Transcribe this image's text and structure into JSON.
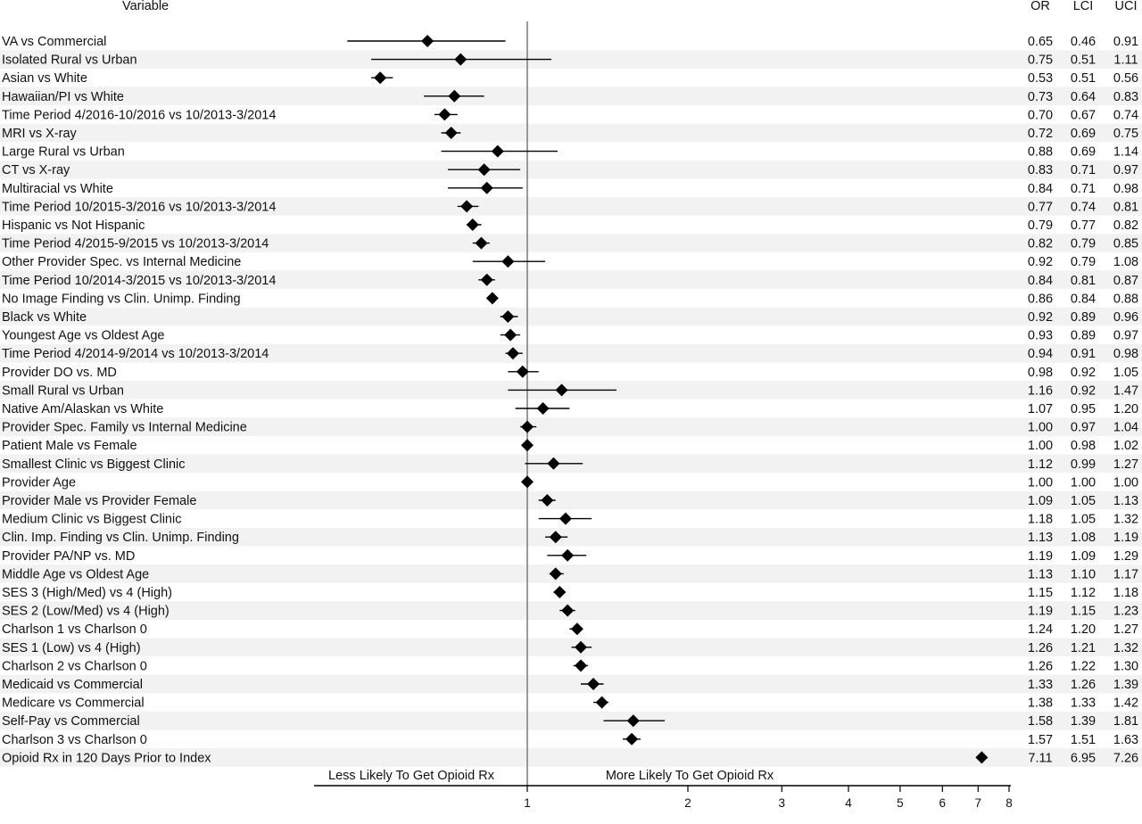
{
  "chart_data": {
    "type": "scatter",
    "subtype": "forest-plot",
    "xscale": "log",
    "xlim": [
      0.37,
      8
    ],
    "reference_line": 1,
    "xticks": [
      1,
      2,
      3,
      4,
      5,
      6,
      7,
      8
    ],
    "columns": {
      "variable": "Variable",
      "or": "OR",
      "lci": "LCI",
      "uci": "UCI"
    },
    "direction_labels": {
      "left": "Less Likely To Get Opioid Rx",
      "right": "More Likely To Get Opioid Rx"
    },
    "rows": [
      {
        "label": "VA vs Commercial",
        "or": 0.65,
        "lci": 0.46,
        "uci": 0.91
      },
      {
        "label": "Isolated Rural vs Urban",
        "or": 0.75,
        "lci": 0.51,
        "uci": 1.11
      },
      {
        "label": "Asian vs White",
        "or": 0.53,
        "lci": 0.51,
        "uci": 0.56
      },
      {
        "label": "Hawaiian/PI vs White",
        "or": 0.73,
        "lci": 0.64,
        "uci": 0.83
      },
      {
        "label": "Time Period 4/2016-10/2016 vs 10/2013-3/2014",
        "or": 0.7,
        "lci": 0.67,
        "uci": 0.74
      },
      {
        "label": "MRI vs X-ray",
        "or": 0.72,
        "lci": 0.69,
        "uci": 0.75
      },
      {
        "label": "Large Rural vs Urban",
        "or": 0.88,
        "lci": 0.69,
        "uci": 1.14
      },
      {
        "label": "CT vs X-ray",
        "or": 0.83,
        "lci": 0.71,
        "uci": 0.97
      },
      {
        "label": "Multiracial vs White",
        "or": 0.84,
        "lci": 0.71,
        "uci": 0.98
      },
      {
        "label": "Time Period 10/2015-3/2016 vs 10/2013-3/2014",
        "or": 0.77,
        "lci": 0.74,
        "uci": 0.81
      },
      {
        "label": "Hispanic vs Not Hispanic",
        "or": 0.79,
        "lci": 0.77,
        "uci": 0.82
      },
      {
        "label": "Time Period 4/2015-9/2015 vs 10/2013-3/2014",
        "or": 0.82,
        "lci": 0.79,
        "uci": 0.85
      },
      {
        "label": "Other Provider Spec. vs Internal Medicine",
        "or": 0.92,
        "lci": 0.79,
        "uci": 1.08
      },
      {
        "label": "Time Period 10/2014-3/2015 vs 10/2013-3/2014",
        "or": 0.84,
        "lci": 0.81,
        "uci": 0.87
      },
      {
        "label": "No Image Finding vs Clin. Unimp. Finding",
        "or": 0.86,
        "lci": 0.84,
        "uci": 0.88
      },
      {
        "label": "Black vs White",
        "or": 0.92,
        "lci": 0.89,
        "uci": 0.96
      },
      {
        "label": "Youngest Age vs Oldest Age",
        "or": 0.93,
        "lci": 0.89,
        "uci": 0.97
      },
      {
        "label": "Time Period 4/2014-9/2014 vs 10/2013-3/2014",
        "or": 0.94,
        "lci": 0.91,
        "uci": 0.98
      },
      {
        "label": "Provider DO vs. MD",
        "or": 0.98,
        "lci": 0.92,
        "uci": 1.05
      },
      {
        "label": "Small Rural vs Urban",
        "or": 1.16,
        "lci": 0.92,
        "uci": 1.47
      },
      {
        "label": "Native Am/Alaskan vs White",
        "or": 1.07,
        "lci": 0.95,
        "uci": 1.2
      },
      {
        "label": "Provider Spec. Family vs Internal Medicine",
        "or": 1.0,
        "lci": 0.97,
        "uci": 1.04
      },
      {
        "label": "Patient Male vs Female",
        "or": 1.0,
        "lci": 0.98,
        "uci": 1.02
      },
      {
        "label": "Smallest Clinic vs Biggest Clinic",
        "or": 1.12,
        "lci": 0.99,
        "uci": 1.27
      },
      {
        "label": "Provider Age",
        "or": 1.0,
        "lci": 1.0,
        "uci": 1.0
      },
      {
        "label": "Provider Male vs Provider Female",
        "or": 1.09,
        "lci": 1.05,
        "uci": 1.13
      },
      {
        "label": "Medium Clinic vs Biggest Clinic",
        "or": 1.18,
        "lci": 1.05,
        "uci": 1.32
      },
      {
        "label": "Clin. Imp. Finding vs Clin. Unimp. Finding",
        "or": 1.13,
        "lci": 1.08,
        "uci": 1.19
      },
      {
        "label": "Provider PA/NP vs. MD",
        "or": 1.19,
        "lci": 1.09,
        "uci": 1.29
      },
      {
        "label": "Middle Age vs Oldest Age",
        "or": 1.13,
        "lci": 1.1,
        "uci": 1.17
      },
      {
        "label": "SES 3 (High/Med) vs 4 (High)",
        "or": 1.15,
        "lci": 1.12,
        "uci": 1.18
      },
      {
        "label": "SES 2 (Low/Med) vs 4 (High)",
        "or": 1.19,
        "lci": 1.15,
        "uci": 1.23
      },
      {
        "label": "Charlson 1 vs Charlson 0",
        "or": 1.24,
        "lci": 1.2,
        "uci": 1.27
      },
      {
        "label": "SES 1 (Low) vs 4 (High)",
        "or": 1.26,
        "lci": 1.21,
        "uci": 1.32
      },
      {
        "label": "Charlson 2 vs Charlson 0",
        "or": 1.26,
        "lci": 1.22,
        "uci": 1.3
      },
      {
        "label": "Medicaid vs Commercial",
        "or": 1.33,
        "lci": 1.26,
        "uci": 1.39
      },
      {
        "label": "Medicare vs Commercial",
        "or": 1.38,
        "lci": 1.33,
        "uci": 1.42
      },
      {
        "label": "Self-Pay vs Commercial",
        "or": 1.58,
        "lci": 1.39,
        "uci": 1.81
      },
      {
        "label": "Charlson 3 vs Charlson 0",
        "or": 1.57,
        "lci": 1.51,
        "uci": 1.63
      },
      {
        "label": "Opioid Rx in 120 Days Prior to Index",
        "or": 7.11,
        "lci": 6.95,
        "uci": 7.26
      }
    ],
    "colors": {
      "marker": "#000000",
      "ci_line": "#000000",
      "stripe": "#f2f2f2",
      "reference_line": "#808080"
    },
    "grid": false,
    "legend": "none"
  }
}
